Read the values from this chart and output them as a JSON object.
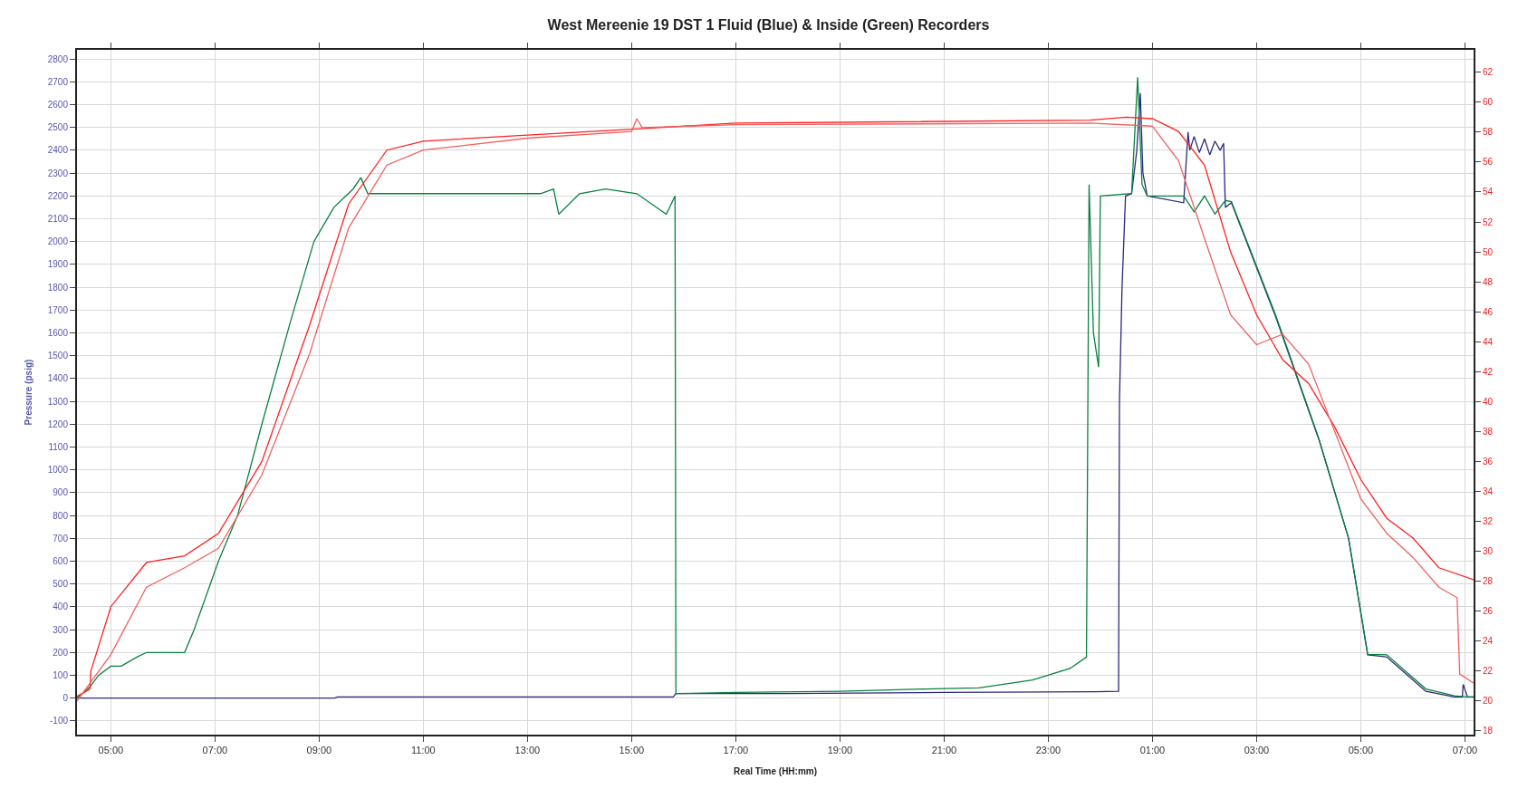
{
  "chart_data": {
    "type": "line",
    "title": "West Mereenie 19 DST 1 Fluid (Blue) & Inside (Green) Recorders",
    "xlabel": "Real Time (HH:mm)",
    "ylabel": "Pressure (psig)",
    "xlim": [
      "2000-01-01T04:21",
      "2000-01-02T07:10"
    ],
    "xticks": [
      {
        "value": "2000-01-01T05:00",
        "label": "05:00"
      },
      {
        "value": "2000-01-01T07:00",
        "label": "07:00"
      },
      {
        "value": "2000-01-01T09:00",
        "label": "09:00"
      },
      {
        "value": "2000-01-01T11:00",
        "label": "11:00"
      },
      {
        "value": "2000-01-01T13:00",
        "label": "13:00"
      },
      {
        "value": "2000-01-01T15:00",
        "label": "15:00"
      },
      {
        "value": "2000-01-01T17:00",
        "label": "17:00"
      },
      {
        "value": "2000-01-01T19:00",
        "label": "19:00"
      },
      {
        "value": "2000-01-01T21:00",
        "label": "21:00"
      },
      {
        "value": "2000-01-01T23:00",
        "label": "23:00"
      },
      {
        "value": "2000-01-02T01:00",
        "label": "01:00"
      },
      {
        "value": "2000-01-02T03:00",
        "label": "03:00"
      },
      {
        "value": "2000-01-02T05:00",
        "label": "05:00"
      },
      {
        "value": "2000-01-02T07:00",
        "label": "07:00"
      }
    ],
    "ylim": [
      -160,
      2840
    ],
    "yticks": [
      -100,
      0,
      100,
      200,
      300,
      400,
      500,
      600,
      700,
      800,
      900,
      1000,
      1100,
      1200,
      1300,
      1400,
      1500,
      1600,
      1700,
      1800,
      1900,
      2000,
      2100,
      2200,
      2300,
      2400,
      2500,
      2600,
      2700,
      2800
    ],
    "y2lim": [
      17.75,
      63.5
    ],
    "y2ticks": [
      18,
      20,
      22,
      24,
      26,
      28,
      30,
      32,
      34,
      36,
      38,
      40,
      42,
      44,
      46,
      48,
      50,
      52,
      54,
      56,
      58,
      60,
      62
    ],
    "grid": true,
    "marker": "none",
    "line_style": "solid",
    "series": [
      {
        "color": "#2b2a7a",
        "x": [
          "2000-01-01T04:21",
          "2000-01-01T09:18",
          "2000-01-01T09:21",
          "2000-01-01T15:48",
          "2000-01-01T15:51",
          "2000-01-01T18:00",
          "2000-01-01T21:00",
          "2000-01-01T23:54",
          "2000-01-02T00:21",
          "2000-01-02T00:22",
          "2000-01-02T00:25",
          "2000-01-02T00:29",
          "2000-01-02T00:36",
          "2000-01-02T00:42",
          "2000-01-02T00:46",
          "2000-01-02T00:49",
          "2000-01-02T00:54",
          "2000-01-02T01:36",
          "2000-01-02T01:41",
          "2000-01-02T01:43",
          "2000-01-02T01:48",
          "2000-01-02T01:54",
          "2000-01-02T02:00",
          "2000-01-02T02:06",
          "2000-01-02T02:12",
          "2000-01-02T02:18",
          "2000-01-02T02:22",
          "2000-01-02T02:24",
          "2000-01-02T02:31",
          "2000-01-02T03:22",
          "2000-01-02T04:12",
          "2000-01-02T04:46",
          "2000-01-02T05:08",
          "2000-01-02T05:30",
          "2000-01-02T05:54",
          "2000-01-02T06:15",
          "2000-01-02T06:48",
          "2000-01-02T06:57",
          "2000-01-02T06:58",
          "2000-01-02T07:03",
          "2000-01-02T07:10"
        ],
        "values": [
          0,
          0,
          5,
          5,
          20,
          20,
          25,
          28,
          30,
          1300,
          1800,
          2200,
          2210,
          2400,
          2650,
          2300,
          2200,
          2170,
          2480,
          2400,
          2460,
          2390,
          2450,
          2380,
          2440,
          2400,
          2430,
          2150,
          2170,
          1670,
          1130,
          700,
          190,
          180,
          100,
          30,
          5,
          5,
          60,
          5,
          5
        ]
      },
      {
        "color": "#0a8040",
        "x": [
          "2000-01-01T04:21",
          "2000-01-01T04:36",
          "2000-01-01T04:46",
          "2000-01-01T05:00",
          "2000-01-01T05:12",
          "2000-01-01T05:30",
          "2000-01-01T05:41",
          "2000-01-01T06:25",
          "2000-01-01T06:36",
          "2000-01-01T07:04",
          "2000-01-01T07:26",
          "2000-01-01T07:54",
          "2000-01-01T08:27",
          "2000-01-01T08:54",
          "2000-01-01T09:17",
          "2000-01-01T09:39",
          "2000-01-01T09:48",
          "2000-01-01T09:56",
          "2000-01-01T13:15",
          "2000-01-01T13:30",
          "2000-01-01T13:36",
          "2000-01-01T14:00",
          "2000-01-01T14:30",
          "2000-01-01T15:06",
          "2000-01-01T15:40",
          "2000-01-01T15:50",
          "2000-01-01T15:51",
          "2000-01-01T17:00",
          "2000-01-01T19:00",
          "2000-01-01T20:38",
          "2000-01-01T21:40",
          "2000-01-01T22:42",
          "2000-01-01T23:25",
          "2000-01-01T23:44",
          "2000-01-01T23:47",
          "2000-01-01T23:52",
          "2000-01-01T23:58",
          "2000-01-02T00:00",
          "2000-01-02T00:36",
          "2000-01-02T00:43",
          "2000-01-02T00:48",
          "2000-01-02T00:54",
          "2000-01-02T01:36",
          "2000-01-02T01:48",
          "2000-01-02T02:00",
          "2000-01-02T02:12",
          "2000-01-02T02:24",
          "2000-01-02T02:31",
          "2000-01-02T03:22",
          "2000-01-02T04:12",
          "2000-01-02T04:46",
          "2000-01-02T05:08",
          "2000-01-02T05:30",
          "2000-01-02T05:54",
          "2000-01-02T06:15",
          "2000-01-02T06:48",
          "2000-01-02T07:03",
          "2000-01-02T07:10"
        ],
        "values": [
          0,
          50,
          100,
          140,
          140,
          180,
          200,
          200,
          300,
          600,
          800,
          1200,
          1650,
          2000,
          2150,
          2230,
          2280,
          2210,
          2210,
          2230,
          2120,
          2210,
          2230,
          2210,
          2120,
          2200,
          20,
          25,
          30,
          40,
          45,
          80,
          130,
          180,
          2250,
          1600,
          1450,
          2200,
          2210,
          2720,
          2250,
          2200,
          2200,
          2130,
          2200,
          2120,
          2180,
          2175,
          1677,
          1134,
          700,
          192,
          190,
          110,
          40,
          10,
          5,
          5
        ]
      },
      {
        "color": "#ff2020",
        "axis": "y2",
        "x": [
          "2000-01-01T04:21",
          "2000-01-01T04:36",
          "2000-01-01T04:37",
          "2000-01-01T05:00",
          "2000-01-01T05:41",
          "2000-01-01T06:25",
          "2000-01-01T07:04",
          "2000-01-01T07:54",
          "2000-01-01T08:49",
          "2000-01-01T09:34",
          "2000-01-01T10:18",
          "2000-01-01T11:00",
          "2000-01-01T13:00",
          "2000-01-01T15:00",
          "2000-01-01T17:00",
          "2000-01-01T23:48",
          "2000-01-02T00:30",
          "2000-01-02T01:00",
          "2000-01-02T01:30",
          "2000-01-02T02:00",
          "2000-01-02T02:30",
          "2000-01-02T03:00",
          "2000-01-02T03:30",
          "2000-01-02T04:00",
          "2000-01-02T04:30",
          "2000-01-02T05:00",
          "2000-01-02T05:30",
          "2000-01-02T06:00",
          "2000-01-02T06:30",
          "2000-01-02T07:10"
        ],
        "values": [
          20.3,
          20.8,
          22,
          26.3,
          29.25,
          29.7,
          31.2,
          36.0,
          45.1,
          53.2,
          56.8,
          57.4,
          57.8,
          58.2,
          58.6,
          58.8,
          59.0,
          58.9,
          58.05,
          55.8,
          50.0,
          45.8,
          42.8,
          41.2,
          38.3,
          34.8,
          32.2,
          30.9,
          28.9,
          28.1
        ]
      },
      {
        "color": "#f06060",
        "axis": "y2",
        "x": [
          "2000-01-01T04:21",
          "2000-01-01T05:00",
          "2000-01-01T05:41",
          "2000-01-01T06:25",
          "2000-01-01T07:04",
          "2000-01-01T07:54",
          "2000-01-01T08:49",
          "2000-01-01T09:34",
          "2000-01-01T10:18",
          "2000-01-01T11:00",
          "2000-01-01T13:00",
          "2000-01-01T15:00",
          "2000-01-01T15:06",
          "2000-01-01T15:12",
          "2000-01-01T17:00",
          "2000-01-01T23:48",
          "2000-01-02T01:00",
          "2000-01-02T01:30",
          "2000-01-02T02:00",
          "2000-01-02T02:30",
          "2000-01-02T03:00",
          "2000-01-02T03:30",
          "2000-01-02T04:00",
          "2000-01-02T04:30",
          "2000-01-02T05:00",
          "2000-01-02T05:30",
          "2000-01-02T06:00",
          "2000-01-02T06:30",
          "2000-01-02T06:51",
          "2000-01-02T06:54",
          "2000-01-02T07:10"
        ],
        "values": [
          20,
          23.1,
          27.6,
          28.9,
          30.2,
          35.1,
          43.2,
          51.6,
          55.8,
          56.8,
          57.6,
          58.05,
          58.9,
          58.3,
          58.5,
          58.6,
          58.4,
          56.1,
          50.9,
          45.8,
          43.8,
          44.5,
          42.5,
          38.0,
          33.5,
          31.2,
          29.6,
          27.6,
          26.9,
          21.8,
          21.2
        ]
      }
    ]
  }
}
